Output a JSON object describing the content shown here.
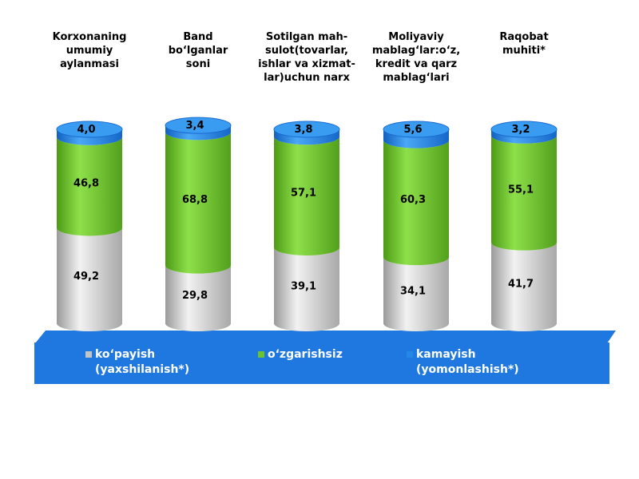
{
  "chart_data": {
    "type": "bar",
    "stacked": true,
    "categories": [
      "Korxonaning\numumiy\naylanmasi",
      "Band\nbo‘lganlar\nsoni",
      "Sotilgan mah-\nsulot(tovarlar,\nishlar va xizmat-\nlar)uchun narx",
      "Moliyaviy\nmablag‘lar:o‘z,\nkredit va qarz\nmablag‘lari",
      "Raqobat\nmuhiti*"
    ],
    "series": [
      {
        "name": "ko‘payish\n(yaxshilanish*)",
        "color": "#c4c4c4",
        "values": [
          49.2,
          29.8,
          39.1,
          34.1,
          41.7
        ],
        "labels": [
          "49,2",
          "29,8",
          "39,1",
          "34,1",
          "41,7"
        ]
      },
      {
        "name": "o‘zgarishsiz",
        "color": "#6cc42c",
        "values": [
          46.8,
          68.8,
          57.1,
          60.3,
          55.1
        ],
        "labels": [
          "46,8",
          "68,8",
          "57,1",
          "60,3",
          "55,1"
        ]
      },
      {
        "name": "kamayish\n(yomonlashish*)",
        "color": "#2588e6",
        "values": [
          4.0,
          3.4,
          3.8,
          5.6,
          3.2
        ],
        "labels": [
          "4,0",
          "3,4",
          "3,8",
          "5,6",
          "3,2"
        ]
      }
    ],
    "ylim": [
      0,
      100
    ],
    "legend_position": "bottom"
  }
}
